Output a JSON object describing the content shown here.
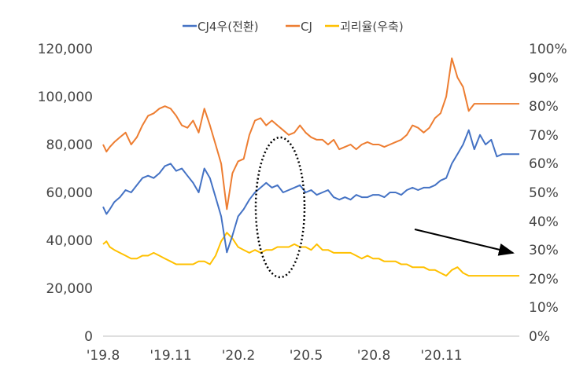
{
  "chart_data": {
    "type": "line",
    "title": "",
    "xlabel": "",
    "ylabel": "",
    "y2label": "",
    "categories": [
      "'19.8",
      "'19.11",
      "'20.2",
      "'20.5",
      "'20.8",
      "'20.11"
    ],
    "ylim": [
      0,
      120000
    ],
    "y2lim": [
      0,
      100
    ],
    "y_ticks": [
      "0",
      "20,000",
      "40,000",
      "60,000",
      "80,000",
      "100,000",
      "120,000"
    ],
    "y2_ticks": [
      "0%",
      "10%",
      "20%",
      "30%",
      "40%",
      "50%",
      "60%",
      "70%",
      "80%",
      "90%",
      "100%"
    ],
    "grid": false,
    "legend_position": "top",
    "series": [
      {
        "name": "CJ4우(전환)",
        "axis": "left",
        "color": "#4472C4",
        "x": [
          0,
          0.3,
          0.6,
          1,
          1.5,
          2,
          2.5,
          3,
          3.5,
          4,
          4.5,
          5,
          5.5,
          6,
          6.5,
          7,
          7.5,
          8,
          8.5,
          9,
          9.5,
          10,
          10.5,
          11,
          11.5,
          12,
          12.5,
          13,
          13.5,
          14,
          14.5,
          15,
          15.5,
          16,
          16.5,
          17,
          17.5,
          18,
          18.5,
          19,
          19.5,
          20,
          20.5,
          21,
          21.5,
          22,
          22.5,
          23,
          23.5,
          24,
          24.5,
          25,
          25.5,
          26,
          26.5,
          27,
          27.5,
          28,
          28.5,
          29,
          29.5,
          30,
          30.5,
          31,
          31.5,
          32,
          32.5,
          33,
          33.5,
          34,
          34.5,
          35,
          35.5,
          35.8,
          36,
          36.5,
          37
        ],
        "values": [
          54000,
          51000,
          53000,
          56000,
          58000,
          61000,
          60000,
          63000,
          66000,
          67000,
          66000,
          68000,
          71000,
          72000,
          69000,
          70000,
          67000,
          64000,
          60000,
          70000,
          66000,
          58000,
          50000,
          35000,
          42000,
          50000,
          53000,
          57000,
          60000,
          62000,
          64000,
          62000,
          63000,
          60000,
          61000,
          62000,
          63000,
          60000,
          61000,
          59000,
          60000,
          61000,
          58000,
          57000,
          58000,
          57000,
          59000,
          58000,
          58000,
          59000,
          59000,
          58000,
          60000,
          60000,
          59000,
          61000,
          62000,
          61000,
          62000,
          62000,
          63000,
          65000,
          66000,
          72000,
          76000,
          80000,
          86000,
          78000,
          84000,
          80000,
          82000,
          75000,
          76000,
          76000,
          76000,
          76000,
          76000
        ]
      },
      {
        "name": "CJ",
        "axis": "left",
        "color": "#ED7D31",
        "x": [
          0,
          0.3,
          0.6,
          1,
          1.5,
          2,
          2.5,
          3,
          3.5,
          4,
          4.5,
          5,
          5.5,
          6,
          6.5,
          7,
          7.5,
          8,
          8.5,
          9,
          9.5,
          10,
          10.5,
          11,
          11.5,
          12,
          12.5,
          13,
          13.5,
          14,
          14.5,
          15,
          15.5,
          16,
          16.5,
          17,
          17.5,
          18,
          18.5,
          19,
          19.5,
          20,
          20.5,
          21,
          21.5,
          22,
          22.5,
          23,
          23.5,
          24,
          24.5,
          25,
          25.5,
          26,
          26.5,
          27,
          27.5,
          28,
          28.5,
          29,
          29.5,
          30,
          30.5,
          31,
          31.5,
          32,
          32.5,
          33,
          33.5,
          34,
          34.5,
          35,
          35.5,
          35.8,
          36,
          36.5,
          37
        ],
        "values": [
          80000,
          77000,
          79000,
          81000,
          83000,
          85000,
          80000,
          83000,
          88000,
          92000,
          93000,
          95000,
          96000,
          95000,
          92000,
          88000,
          87000,
          90000,
          85000,
          95000,
          88000,
          80000,
          72000,
          53000,
          68000,
          73000,
          74000,
          84000,
          90000,
          91000,
          88000,
          90000,
          88000,
          86000,
          84000,
          85000,
          88000,
          85000,
          83000,
          82000,
          82000,
          80000,
          82000,
          78000,
          79000,
          80000,
          78000,
          80000,
          81000,
          80000,
          80000,
          79000,
          80000,
          81000,
          82000,
          84000,
          88000,
          87000,
          85000,
          87000,
          91000,
          93000,
          100000,
          116000,
          108000,
          104000,
          94000,
          97000,
          97000,
          97000,
          97000,
          97000,
          97000,
          97000,
          97000,
          97000,
          97000
        ]
      },
      {
        "name": "괴리율(우축)",
        "axis": "right",
        "color": "#FFC000",
        "x": [
          0,
          0.3,
          0.6,
          1,
          1.5,
          2,
          2.5,
          3,
          3.5,
          4,
          4.5,
          5,
          5.5,
          6,
          6.5,
          7,
          7.5,
          8,
          8.5,
          9,
          9.5,
          10,
          10.5,
          11,
          11.5,
          12,
          12.5,
          13,
          13.5,
          14,
          14.5,
          15,
          15.5,
          16,
          16.5,
          17,
          17.5,
          18,
          18.5,
          19,
          19.5,
          20,
          20.5,
          21,
          21.5,
          22,
          22.5,
          23,
          23.5,
          24,
          24.5,
          25,
          25.5,
          26,
          26.5,
          27,
          27.5,
          28,
          28.5,
          29,
          29.5,
          30,
          30.5,
          31,
          31.5,
          32,
          32.5,
          33,
          33.5,
          34,
          34.5,
          35,
          35.5,
          35.8,
          36,
          36.5,
          37
        ],
        "values": [
          32,
          33,
          31,
          30,
          29,
          28,
          27,
          27,
          28,
          28,
          29,
          28,
          27,
          26,
          25,
          25,
          25,
          25,
          26,
          26,
          25,
          28,
          33,
          36,
          34,
          31,
          30,
          29,
          30,
          29,
          30,
          30,
          31,
          31,
          31,
          32,
          31,
          31,
          30,
          32,
          30,
          30,
          29,
          29,
          29,
          29,
          28,
          27,
          28,
          27,
          27,
          26,
          26,
          26,
          25,
          25,
          24,
          24,
          24,
          23,
          23,
          22,
          21,
          23,
          24,
          22,
          21,
          21,
          21,
          21,
          21,
          21,
          21,
          21,
          21,
          21,
          21
        ]
      }
    ]
  }
}
